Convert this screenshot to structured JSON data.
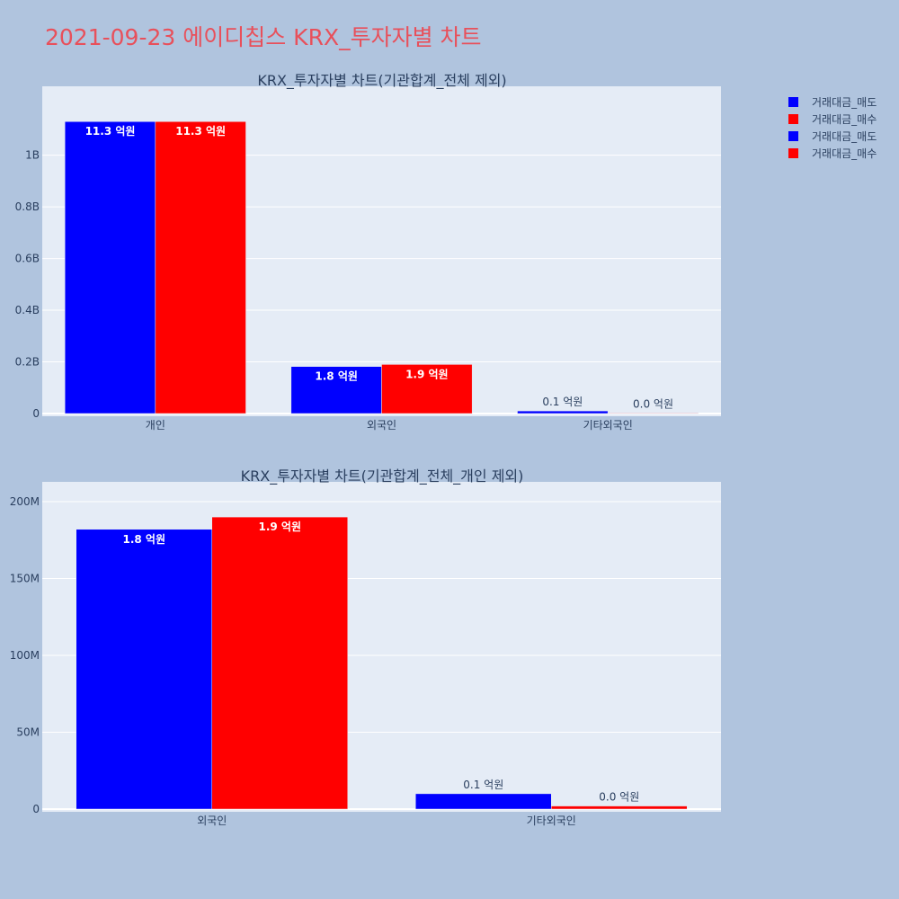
{
  "title": "2021-09-23 에이디칩스 KRX_투자자별 차트",
  "legend": [
    {
      "label": "거래대금_매도",
      "color": "#0000ff"
    },
    {
      "label": "거래대금_매수",
      "color": "#ff0000"
    },
    {
      "label": "거래대금_매도",
      "color": "#0000ff"
    },
    {
      "label": "거래대금_매수",
      "color": "#ff0000"
    }
  ],
  "chart_data": [
    {
      "type": "bar",
      "title": "KRX_투자자별 차트(기관합계_전체 제외)",
      "categories": [
        "개인",
        "외국인",
        "기타외국인"
      ],
      "series": [
        {
          "name": "거래대금_매도",
          "color": "#0000ff",
          "values": [
            1130000000,
            182000000,
            10000000
          ],
          "labels": [
            "11.3 억원",
            "1.8 억원",
            "0.1 억원"
          ]
        },
        {
          "name": "거래대금_매수",
          "color": "#ff0000",
          "values": [
            1130000000,
            190000000,
            2000000
          ],
          "labels": [
            "11.3 억원",
            "1.9 억원",
            "0.0 억원"
          ]
        }
      ],
      "yticks": [
        0,
        200000000,
        400000000,
        600000000,
        800000000,
        1000000000
      ],
      "ytick_labels": [
        "0",
        "0.2B",
        "0.4B",
        "0.6B",
        "0.8B",
        "1B"
      ],
      "ylim": [
        0,
        1190000000
      ],
      "grid": true
    },
    {
      "type": "bar",
      "title": "KRX_투자자별 차트(기관합계_전체_개인 제외)",
      "categories": [
        "외국인",
        "기타외국인"
      ],
      "series": [
        {
          "name": "거래대금_매도",
          "color": "#0000ff",
          "values": [
            182000000,
            10000000
          ],
          "labels": [
            "1.8 억원",
            "0.1 억원"
          ]
        },
        {
          "name": "거래대금_매수",
          "color": "#ff0000",
          "values": [
            190000000,
            2000000
          ],
          "labels": [
            "1.9 억원",
            "0.0 억원"
          ]
        }
      ],
      "yticks": [
        0,
        50000000,
        100000000,
        150000000,
        200000000
      ],
      "ytick_labels": [
        "0",
        "50M",
        "100M",
        "150M",
        "200M"
      ],
      "ylim": [
        0,
        200000000
      ],
      "grid": true
    }
  ]
}
